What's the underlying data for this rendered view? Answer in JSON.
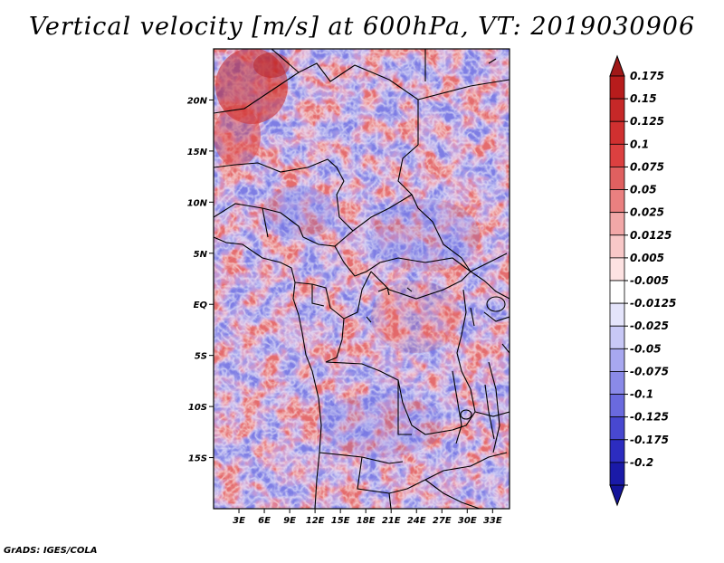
{
  "title": "Vertical velocity [m/s] at 600hPa, VT: 2019030906",
  "credit": "GrADS: IGES/COLA",
  "map": {
    "lon_range": [
      0,
      35
    ],
    "lat_range": [
      -20,
      25
    ],
    "lat_ticks": [
      {
        "value": 20,
        "label": "20N"
      },
      {
        "value": 15,
        "label": "15N"
      },
      {
        "value": 10,
        "label": "10N"
      },
      {
        "value": 5,
        "label": "5N"
      },
      {
        "value": 0,
        "label": "EQ"
      },
      {
        "value": -5,
        "label": "5S"
      },
      {
        "value": -10,
        "label": "10S"
      },
      {
        "value": -15,
        "label": "15S"
      }
    ],
    "lon_ticks": [
      {
        "value": 3,
        "label": "3E"
      },
      {
        "value": 6,
        "label": "6E"
      },
      {
        "value": 9,
        "label": "9E"
      },
      {
        "value": 12,
        "label": "12E"
      },
      {
        "value": 15,
        "label": "15E"
      },
      {
        "value": 18,
        "label": "18E"
      },
      {
        "value": 21,
        "label": "21E"
      },
      {
        "value": 24,
        "label": "24E"
      },
      {
        "value": 27,
        "label": "27E"
      },
      {
        "value": 30,
        "label": "30E"
      },
      {
        "value": 33,
        "label": "33E"
      }
    ]
  },
  "colorbar": {
    "levels": [
      {
        "label": "0.175",
        "color": "#b71c1c"
      },
      {
        "label": "0.15",
        "color": "#c62828"
      },
      {
        "label": "0.125",
        "color": "#d03030"
      },
      {
        "label": "0.1",
        "color": "#dc4040"
      },
      {
        "label": "0.075",
        "color": "#e06060"
      },
      {
        "label": "0.05",
        "color": "#ea8080"
      },
      {
        "label": "0.025",
        "color": "#f2a8a8"
      },
      {
        "label": "0.0125",
        "color": "#f8c8c8"
      },
      {
        "label": "0.005",
        "color": "#fde2e2"
      },
      {
        "label": "-0.005",
        "color": "#ffffff"
      },
      {
        "label": "-0.0125",
        "color": "#e4e4fb"
      },
      {
        "label": "-0.025",
        "color": "#c8c8f6"
      },
      {
        "label": "-0.05",
        "color": "#a8a8f0"
      },
      {
        "label": "-0.075",
        "color": "#8a8ae8"
      },
      {
        "label": "-0.1",
        "color": "#6a6ade"
      },
      {
        "label": "-0.125",
        "color": "#4848d0"
      },
      {
        "label": "-0.175",
        "color": "#2c2cc0"
      },
      {
        "label": "-0.2",
        "color": "#1a1aa8"
      }
    ],
    "over_color": "#a01818",
    "under_color": "#14149a"
  }
}
